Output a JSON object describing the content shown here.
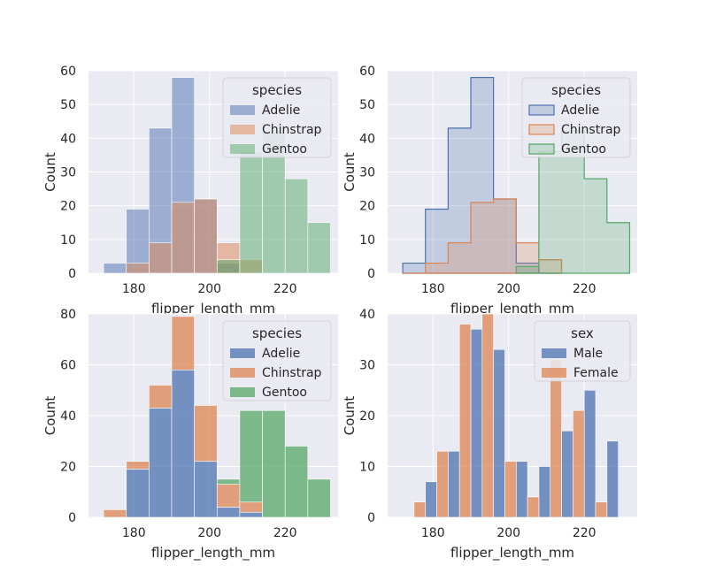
{
  "colors": {
    "panel_bg": "#EAEAF2",
    "grid": "#FFFFFF",
    "blue": "#4C72B0",
    "orange": "#DD8452",
    "green": "#55A868"
  },
  "chart_data": [
    {
      "type": "bar",
      "variant": "histogram-layered",
      "xlabel": "flipper_length_mm",
      "ylabel": "Count",
      "xlim": [
        168,
        234
      ],
      "ylim": [
        0,
        60
      ],
      "yticks": [
        0,
        10,
        20,
        30,
        40,
        50,
        60
      ],
      "xticks": [
        180,
        200,
        220
      ],
      "legend": {
        "title": "species",
        "placement": "top-right"
      },
      "series": [
        {
          "name": "Adelie",
          "bins": [
            [
              172,
              178,
              3
            ],
            [
              178,
              184,
              19
            ],
            [
              184,
              190,
              43
            ],
            [
              190,
              196,
              58
            ],
            [
              196,
              202,
              22
            ],
            [
              202,
              208,
              3
            ],
            [
              208,
              214,
              0
            ]
          ]
        },
        {
          "name": "Chinstrap",
          "bins": [
            [
              172,
              178,
              0
            ],
            [
              178,
              184,
              3
            ],
            [
              184,
              190,
              9
            ],
            [
              190,
              196,
              21
            ],
            [
              196,
              202,
              22
            ],
            [
              202,
              208,
              9
            ],
            [
              208,
              214,
              4
            ]
          ]
        },
        {
          "name": "Gentoo",
          "bins": [
            [
              202,
              208,
              4
            ],
            [
              208,
              214,
              36
            ],
            [
              214,
              220,
              42
            ],
            [
              220,
              226,
              28
            ],
            [
              226,
              232,
              15
            ]
          ]
        }
      ]
    },
    {
      "type": "bar",
      "variant": "histogram-step",
      "xlabel": "flipper_length_mm",
      "ylabel": "Count",
      "xlim": [
        168,
        234
      ],
      "ylim": [
        0,
        60
      ],
      "yticks": [
        0,
        10,
        20,
        30,
        40,
        50,
        60
      ],
      "xticks": [
        180,
        200,
        220
      ],
      "legend": {
        "title": "species",
        "placement": "top-right"
      },
      "series": [
        {
          "name": "Adelie",
          "bins": [
            [
              172,
              178,
              3
            ],
            [
              178,
              184,
              19
            ],
            [
              184,
              190,
              43
            ],
            [
              190,
              196,
              58
            ],
            [
              196,
              202,
              22
            ],
            [
              202,
              208,
              3
            ],
            [
              208,
              214,
              0
            ]
          ]
        },
        {
          "name": "Chinstrap",
          "bins": [
            [
              172,
              178,
              0
            ],
            [
              178,
              184,
              3
            ],
            [
              184,
              190,
              9
            ],
            [
              190,
              196,
              21
            ],
            [
              196,
              202,
              22
            ],
            [
              202,
              208,
              9
            ],
            [
              208,
              214,
              4
            ]
          ]
        },
        {
          "name": "Gentoo",
          "bins": [
            [
              202,
              208,
              2
            ],
            [
              208,
              214,
              36
            ],
            [
              214,
              220,
              42
            ],
            [
              220,
              226,
              28
            ],
            [
              226,
              232,
              15
            ]
          ]
        }
      ]
    },
    {
      "type": "bar",
      "variant": "histogram-stacked",
      "xlabel": "flipper_length_mm",
      "ylabel": "Count",
      "xlim": [
        168,
        234
      ],
      "ylim": [
        0,
        80
      ],
      "yticks": [
        0,
        20,
        40,
        60,
        80
      ],
      "xticks": [
        180,
        200,
        220
      ],
      "legend": {
        "title": "species",
        "placement": "top-right"
      },
      "series": [
        {
          "name": "Adelie",
          "bins": [
            [
              172,
              178,
              0
            ],
            [
              178,
              184,
              19
            ],
            [
              184,
              190,
              43
            ],
            [
              190,
              196,
              58
            ],
            [
              196,
              202,
              22
            ],
            [
              202,
              208,
              4
            ],
            [
              208,
              214,
              2
            ]
          ]
        },
        {
          "name": "Chinstrap",
          "bins": [
            [
              172,
              178,
              3
            ],
            [
              178,
              184,
              3
            ],
            [
              184,
              190,
              9
            ],
            [
              190,
              196,
              21
            ],
            [
              196,
              202,
              22
            ],
            [
              202,
              208,
              9
            ],
            [
              208,
              214,
              4
            ]
          ]
        },
        {
          "name": "Gentoo",
          "bins": [
            [
              202,
              208,
              2
            ],
            [
              208,
              214,
              36
            ],
            [
              214,
              220,
              42
            ],
            [
              220,
              226,
              28
            ],
            [
              226,
              232,
              15
            ]
          ]
        }
      ]
    },
    {
      "type": "bar",
      "variant": "histogram-dodged",
      "xlabel": "flipper_length_mm",
      "ylabel": "Count",
      "xlim": [
        168,
        234
      ],
      "ylim": [
        0,
        40
      ],
      "yticks": [
        0,
        10,
        20,
        30,
        40
      ],
      "xticks": [
        180,
        200,
        220
      ],
      "legend": {
        "title": "sex",
        "placement": "top-right"
      },
      "series": [
        {
          "name": "Male",
          "bins": [
            [
              178,
              181,
              7
            ],
            [
              184,
              187,
              13
            ],
            [
              190,
              193,
              37
            ],
            [
              196,
              199,
              33
            ],
            [
              202,
              205,
              11
            ],
            [
              208,
              211,
              10
            ],
            [
              214,
              217,
              17
            ],
            [
              220,
              223,
              25
            ],
            [
              226,
              229,
              15
            ]
          ]
        },
        {
          "name": "Female",
          "bins": [
            [
              175,
              178,
              3
            ],
            [
              181,
              184,
              13
            ],
            [
              187,
              190,
              38
            ],
            [
              193,
              196,
              40
            ],
            [
              199,
              202,
              11
            ],
            [
              205,
              208,
              4
            ],
            [
              211,
              214,
              31
            ],
            [
              217,
              220,
              21
            ],
            [
              223,
              226,
              3
            ]
          ]
        }
      ]
    }
  ]
}
